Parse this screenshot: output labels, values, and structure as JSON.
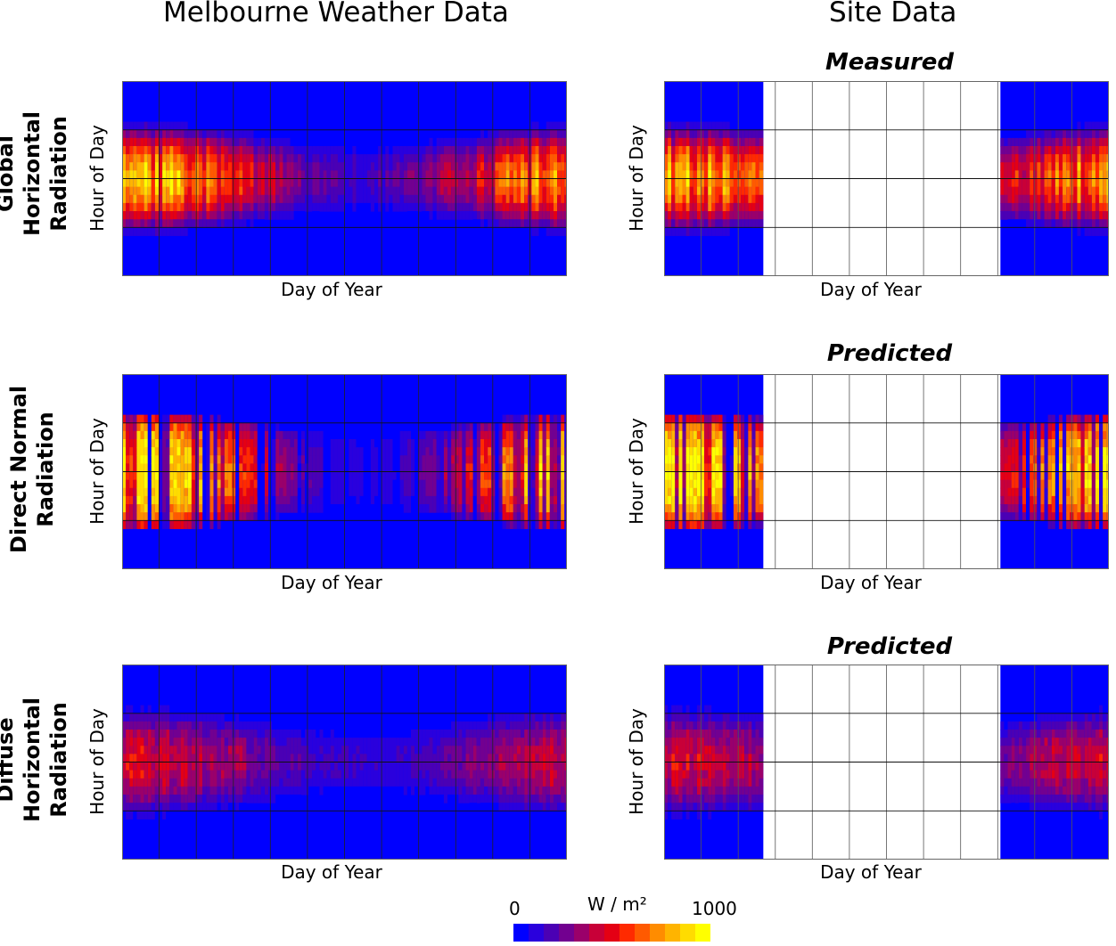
{
  "column_titles": {
    "left": "Melbourne Weather Data",
    "right": "Site Data"
  },
  "row_labels": [
    {
      "line1": "Global Horizontal",
      "line2": "Radiation"
    },
    {
      "line1": "Direct Normal",
      "line2": "Radiation"
    },
    {
      "line1": "Diffuse Horizontal",
      "line2": "Radiation"
    }
  ],
  "colorbar": {
    "min_label": "0",
    "max_label": "1000",
    "unit_label": "W / m²",
    "min": 0,
    "max": 1000,
    "colors": [
      "#0000ff",
      "#2a00dd",
      "#4b00b4",
      "#720090",
      "#9a006a",
      "#c80038",
      "#e40014",
      "#ff2a00",
      "#ff5a00",
      "#ff8c00",
      "#ffb400",
      "#ffdc00",
      "#ffff00"
    ]
  },
  "chart_data": [
    {
      "type": "heatmap",
      "row": 0,
      "column": "left",
      "title": "",
      "subtitle": "",
      "xlabel": "Day of Year",
      "ylabel": "Hour of Day",
      "x_range": [
        1,
        365
      ],
      "y_range": [
        0,
        24
      ],
      "grid": true,
      "days_with_data": "all",
      "pattern": "global",
      "peak_value": 1000
    },
    {
      "type": "heatmap",
      "row": 0,
      "column": "right",
      "subtitle": "Measured",
      "xlabel": "Day of Year",
      "ylabel": "Hour of Day",
      "x_range": [
        1,
        365
      ],
      "y_range": [
        0,
        24
      ],
      "grid": true,
      "days_with_data": [
        [
          1,
          81
        ],
        [
          277,
          365
        ]
      ],
      "pattern": "global",
      "peak_value": 1000
    },
    {
      "type": "heatmap",
      "row": 1,
      "column": "left",
      "title": "",
      "subtitle": "",
      "xlabel": "Day of Year",
      "ylabel": "Hour of Day",
      "x_range": [
        1,
        365
      ],
      "y_range": [
        0,
        24
      ],
      "grid": true,
      "days_with_data": "all",
      "pattern": "direct",
      "peak_value": 1000
    },
    {
      "type": "heatmap",
      "row": 1,
      "column": "right",
      "subtitle": "Predicted",
      "xlabel": "Day of Year",
      "ylabel": "Hour of Day",
      "x_range": [
        1,
        365
      ],
      "y_range": [
        0,
        24
      ],
      "grid": true,
      "days_with_data": [
        [
          1,
          81
        ],
        [
          277,
          365
        ]
      ],
      "pattern": "direct",
      "peak_value": 1000
    },
    {
      "type": "heatmap",
      "row": 2,
      "column": "left",
      "title": "",
      "subtitle": "",
      "xlabel": "Day of Year",
      "ylabel": "Hour of Day",
      "x_range": [
        1,
        365
      ],
      "y_range": [
        0,
        24
      ],
      "grid": true,
      "days_with_data": "all",
      "pattern": "diffuse",
      "peak_value": 500
    },
    {
      "type": "heatmap",
      "row": 2,
      "column": "right",
      "subtitle": "Predicted",
      "xlabel": "Day of Year",
      "ylabel": "Hour of Day",
      "x_range": [
        1,
        365
      ],
      "y_range": [
        0,
        24
      ],
      "grid": true,
      "days_with_data": [
        [
          1,
          81
        ],
        [
          277,
          365
        ]
      ],
      "pattern": "diffuse",
      "peak_value": 500
    }
  ]
}
